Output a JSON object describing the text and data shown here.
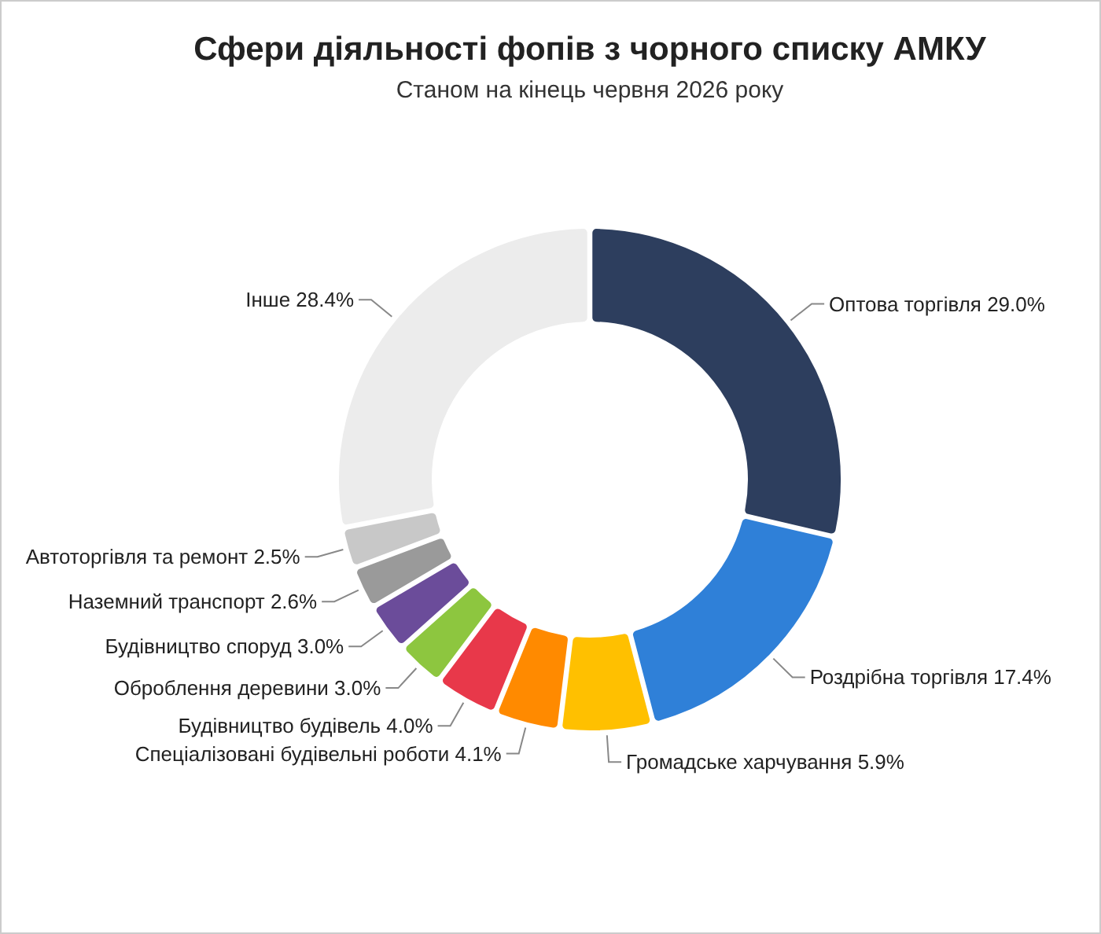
{
  "chart_data": {
    "type": "donut",
    "title": "Сфери діяльності фопів з чорного списку АМКУ",
    "subtitle": "Станом на кінець червня 2026 року",
    "categories": [
      "Оптова торгівля",
      "Роздрібна торгівля",
      "Громадське харчування",
      "Спеціалізовані будівельні роботи",
      "Будівництво будівель",
      "Оброблення деревини",
      "Будівництво споруд",
      "Наземний транспорт",
      "Автоторгівля та ремонт",
      "Інше"
    ],
    "values": [
      29.0,
      17.4,
      5.9,
      4.1,
      4.0,
      3.0,
      3.0,
      2.6,
      2.5,
      28.4
    ],
    "value_labels": [
      "29.0%",
      "17.4%",
      "5.9%",
      "4.1%",
      "4.0%",
      "3.0%",
      "3.0%",
      "2.6%",
      "2.5%",
      "28.4%"
    ],
    "colors": [
      "#2d3e5e",
      "#2f80d8",
      "#ffc000",
      "#ff8a00",
      "#e8384a",
      "#8dc63f",
      "#6b4c9a",
      "#9a9a9a",
      "#c8c8c8",
      "#ececec"
    ]
  }
}
